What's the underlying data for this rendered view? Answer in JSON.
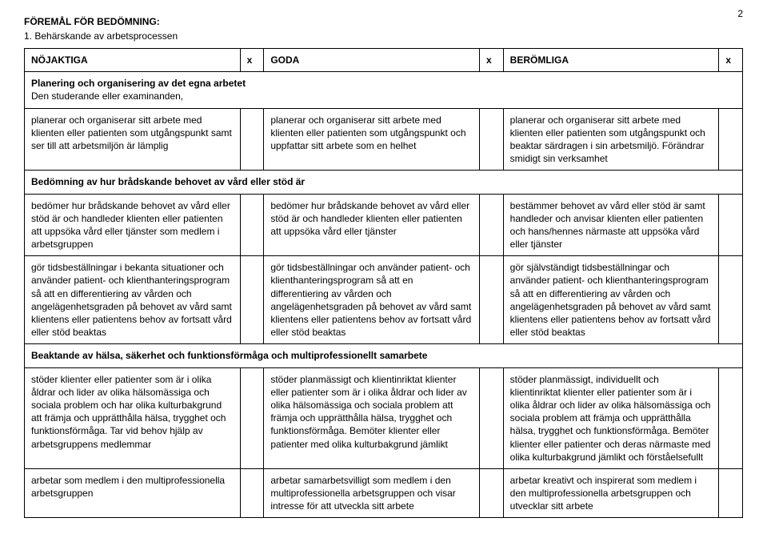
{
  "page_number": "2",
  "section_title": "FÖREMÅL FÖR BEDÖMNING:",
  "item_number": "1.  Behärskande av arbetsprocessen",
  "header": {
    "c1": "NÖJAKTIGA",
    "x1": "x",
    "c2": "GODA",
    "x2": "x",
    "c3": "BERÖMLIGA",
    "x3": "x"
  },
  "sub1": {
    "title": "Planering och organisering av det egna arbetet",
    "subtitle": "Den studerande eller examinanden,",
    "r1": {
      "c1": "planerar och organiserar sitt arbete med klienten eller patienten som utgångspunkt samt ser till att arbetsmiljön är lämplig",
      "c2": "planerar och organiserar sitt arbete med klienten eller patienten som utgångspunkt och uppfattar sitt arbete som en helhet",
      "c3": "planerar och organiserar sitt arbete med klienten eller patienten som utgångspunkt och beaktar särdragen i sin arbetsmiljö. Förändrar smidigt sin verksamhet"
    }
  },
  "sub2": {
    "title": "Bedömning av hur brådskande behovet av vård eller stöd är",
    "r1": {
      "c1": "bedömer hur brådskande behovet av vård eller stöd är och handleder klienten eller patienten att uppsöka vård eller tjänster som medlem i arbetsgruppen",
      "c2": "bedömer hur brådskande behovet av vård eller stöd är och handleder klienten eller patienten att uppsöka vård eller tjänster",
      "c3": "bestämmer behovet av vård eller stöd är samt handleder och anvisar klienten eller patienten och hans/hennes närmaste att uppsöka vård eller tjänster"
    },
    "r2": {
      "c1": "gör tidsbeställningar i bekanta situationer och använder patient- och klienthanteringsprogram så att en differentiering av vården och angelägenhetsgraden på behovet av vård samt klientens eller patientens behov av fortsatt vård eller stöd beaktas",
      "c2": "gör tidsbeställningar och använder patient- och klienthanteringsprogram så att en differentiering av vården och angelägenhetsgraden på behovet av vård samt klientens eller patientens behov av fortsatt vård eller stöd beaktas",
      "c3": "gör självständigt tidsbeställningar och använder patient- och klienthanteringsprogram så att en differentiering av vården och angelägenhetsgraden på behovet av vård samt klientens eller patientens behov av fortsatt vård eller stöd beaktas"
    }
  },
  "sub3": {
    "title": "Beaktande av hälsa, säkerhet och funktionsförmåga och multiprofessionellt samarbete",
    "r1": {
      "c1": "stöder klienter eller patienter som är i olika åldrar och lider av olika hälsomässiga och sociala problem och har olika kulturbakgrund att främja och upprätthålla hälsa, trygghet och funktionsförmåga. Tar vid behov hjälp av arbetsgruppens medlemmar",
      "c2": "stöder planmässigt och klientinriktat klienter eller patienter som är i olika åldrar och lider av olika hälsomässiga och sociala problem att främja och upprätthålla hälsa, trygghet och funktionsförmåga. Bemöter klienter eller patienter med olika kulturbakgrund jämlikt",
      "c3": "stöder planmässigt, individuellt och klientinriktat klienter eller patienter som är i olika åldrar och lider av olika hälsomässiga och sociala problem att främja och upprätthålla hälsa, trygghet och funktionsförmåga. Bemöter klienter eller patienter och deras närmaste med olika kulturbakgrund jämlikt och förståelsefullt"
    },
    "r2": {
      "c1": "arbetar som medlem i den multiprofessionella arbetsgruppen",
      "c2": "arbetar samarbetsvilligt som medlem i den multiprofessionella arbetsgruppen och visar intresse för att utveckla sitt arbete",
      "c3": "arbetar kreativt och inspirerat som medlem i den multiprofessionella arbetsgruppen och utvecklar sitt arbete"
    }
  }
}
